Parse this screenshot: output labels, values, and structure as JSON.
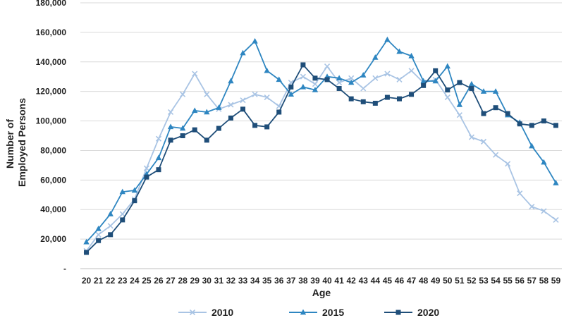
{
  "chart_data": {
    "type": "line",
    "title": "",
    "xlabel": "Age",
    "ylabel": "Number of Employed Persons",
    "ylabel_lines": [
      "Number of",
      "Employed Persons"
    ],
    "ylim": [
      0,
      180000
    ],
    "yticks": [
      0,
      20000,
      40000,
      60000,
      80000,
      100000,
      120000,
      140000,
      160000,
      180000
    ],
    "ytick_labels": [
      "-",
      "20,000",
      "40,000",
      "60,000",
      "80,000",
      "100,000",
      "120,000",
      "140,000",
      "160,000",
      "180,000"
    ],
    "grid": true,
    "legend_position": "bottom",
    "x": [
      "20",
      "21",
      "22",
      "23",
      "24",
      "25",
      "26",
      "27",
      "28",
      "29",
      "30",
      "31",
      "32",
      "33",
      "34",
      "35",
      "36",
      "37",
      "38",
      "39",
      "40",
      "41",
      "42",
      "43",
      "44",
      "45",
      "46",
      "47",
      "48",
      "49",
      "50",
      "51",
      "52",
      "53",
      "54",
      "55",
      "56",
      "57",
      "58",
      "59"
    ],
    "series": [
      {
        "name": "2010",
        "color": "#a9c4e4",
        "marker": "x",
        "values": [
          12000,
          23000,
          29000,
          37000,
          47000,
          68000,
          88000,
          106000,
          118000,
          132000,
          118000,
          108000,
          111000,
          114000,
          118000,
          116000,
          110000,
          126000,
          130000,
          125000,
          137000,
          126000,
          129000,
          122000,
          129000,
          132000,
          128000,
          134000,
          126000,
          128000,
          116000,
          104000,
          89000,
          86000,
          77000,
          71000,
          51000,
          42000,
          39000,
          33000
        ]
      },
      {
        "name": "2015",
        "color": "#2e86c1",
        "marker": "triangle",
        "values": [
          18000,
          27000,
          37000,
          52000,
          53000,
          64000,
          75000,
          96000,
          95000,
          107000,
          106000,
          109000,
          127000,
          146000,
          154000,
          134000,
          128000,
          118000,
          123000,
          121000,
          130000,
          129000,
          126000,
          131000,
          143000,
          155000,
          147000,
          144000,
          127000,
          127000,
          137000,
          111000,
          125000,
          120000,
          120000,
          104000,
          99000,
          83000,
          72000,
          58000
        ]
      },
      {
        "name": "2020",
        "color": "#1f4e79",
        "marker": "square",
        "values": [
          11000,
          19000,
          23000,
          33000,
          46000,
          62000,
          67000,
          87000,
          90000,
          94000,
          87000,
          95000,
          102000,
          108000,
          97000,
          96000,
          106000,
          123000,
          138000,
          129000,
          128000,
          122000,
          115000,
          113000,
          112000,
          116000,
          115000,
          118000,
          124000,
          134000,
          121000,
          126000,
          122000,
          105000,
          109000,
          105000,
          98000,
          97000,
          100000,
          97000
        ]
      }
    ]
  }
}
